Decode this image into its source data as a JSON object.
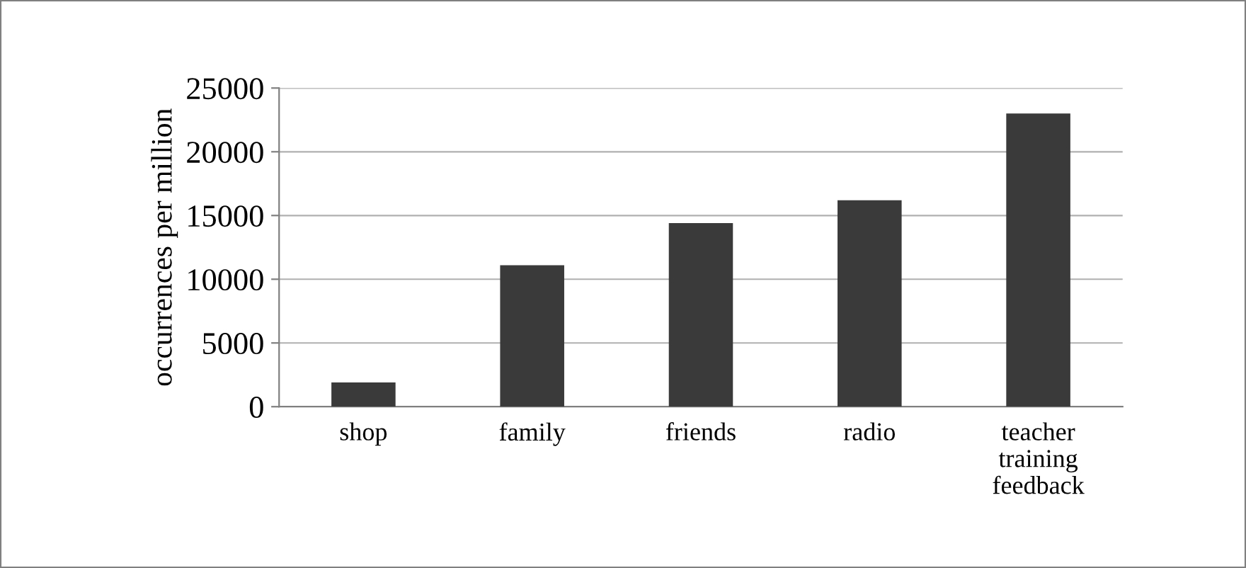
{
  "chart_data": {
    "type": "bar",
    "ylabel": "occurrences per million",
    "categories": [
      "shop",
      "family",
      "friends",
      "radio",
      "teacher\ntraining\nfeedback"
    ],
    "values": [
      1900,
      11100,
      14400,
      16200,
      23000
    ],
    "color": "#3a3a3a",
    "ylim": [
      0,
      25000
    ],
    "yticks": [
      0,
      5000,
      10000,
      15000,
      20000,
      25000
    ],
    "grid": "y"
  }
}
